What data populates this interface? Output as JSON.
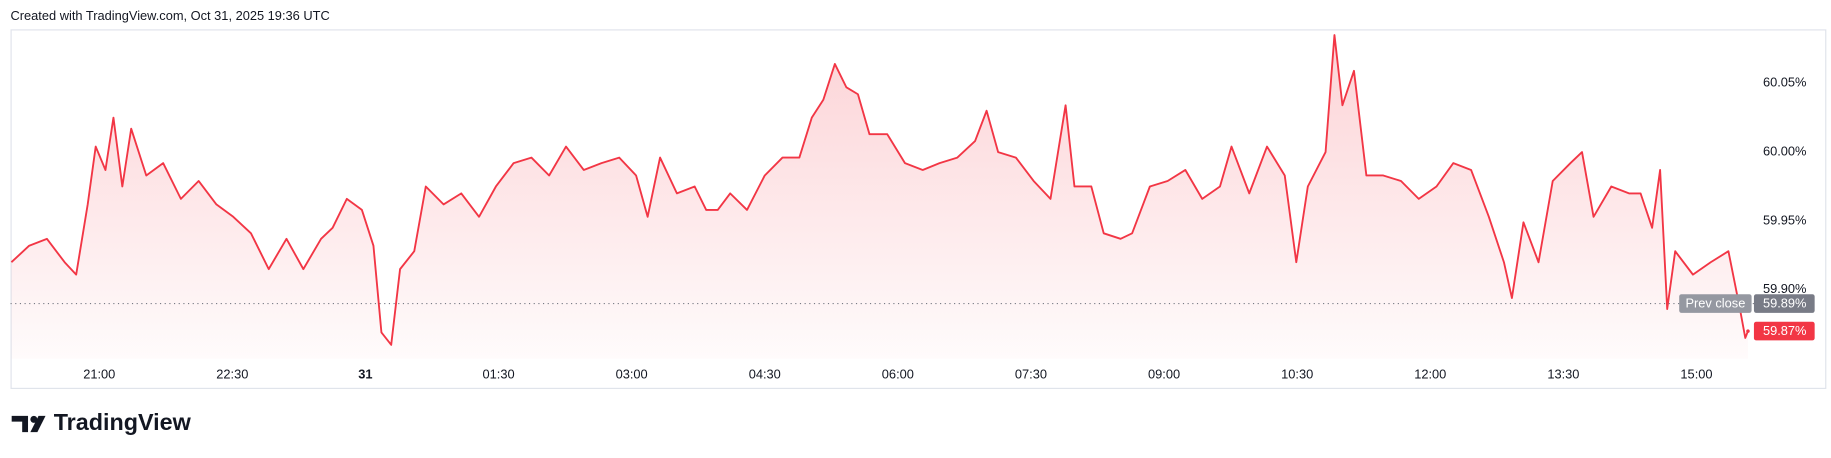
{
  "header": "Created with TradingView.com, Oct 31, 2025 19:36 UTC",
  "brand": "TradingView",
  "chart_data": {
    "type": "area",
    "color": "#f23645",
    "grid": false,
    "x": [
      20.01,
      20.21,
      20.41,
      20.61,
      20.74,
      20.87,
      20.96,
      21.07,
      21.16,
      21.26,
      21.36,
      21.53,
      21.72,
      21.92,
      22.12,
      22.32,
      22.51,
      22.71,
      22.91,
      23.11,
      23.3,
      23.5,
      23.63,
      23.79,
      23.96,
      24.09,
      24.18,
      24.29,
      24.39,
      24.55,
      24.68,
      24.88,
      25.08,
      25.28,
      25.47,
      25.67,
      25.87,
      26.07,
      26.26,
      26.46,
      26.66,
      26.86,
      27.05,
      27.18,
      27.32,
      27.51,
      27.71,
      27.84,
      27.97,
      28.11,
      28.3,
      28.5,
      28.7,
      28.89,
      29.03,
      29.16,
      29.29,
      29.42,
      29.55,
      29.68,
      29.88,
      30.08,
      30.28,
      30.47,
      30.67,
      30.87,
      31.0,
      31.13,
      31.33,
      31.53,
      31.72,
      31.89,
      31.99,
      32.18,
      32.32,
      32.51,
      32.64,
      32.84,
      33.04,
      33.24,
      33.43,
      33.63,
      33.76,
      33.96,
      34.16,
      34.36,
      34.49,
      34.62,
      34.82,
      34.92,
      35.01,
      35.14,
      35.28,
      35.47,
      35.67,
      35.87,
      36.07,
      36.26,
      36.46,
      36.66,
      36.83,
      36.92,
      37.05,
      37.22,
      37.38,
      37.58,
      37.71,
      37.84,
      38.04,
      38.24,
      38.37,
      38.5,
      38.59,
      38.67,
      38.76,
      38.96,
      39.16,
      39.36,
      39.49,
      39.55,
      39.58
    ],
    "values": [
      59.92,
      59.932,
      59.937,
      59.92,
      59.911,
      59.962,
      60.004,
      59.987,
      60.025,
      59.975,
      60.017,
      59.983,
      59.992,
      59.966,
      59.979,
      59.962,
      59.953,
      59.941,
      59.915,
      59.937,
      59.915,
      59.937,
      59.945,
      59.966,
      59.958,
      59.932,
      59.869,
      59.86,
      59.915,
      59.928,
      59.975,
      59.962,
      59.97,
      59.953,
      59.975,
      59.992,
      59.996,
      59.983,
      60.004,
      59.987,
      59.992,
      59.996,
      59.983,
      59.953,
      59.996,
      59.97,
      59.975,
      59.958,
      59.958,
      59.97,
      59.958,
      59.983,
      59.996,
      59.996,
      60.025,
      60.038,
      60.064,
      60.047,
      60.042,
      60.013,
      60.013,
      59.992,
      59.987,
      59.992,
      59.996,
      60.008,
      60.03,
      60.0,
      59.996,
      59.979,
      59.966,
      60.034,
      59.975,
      59.975,
      59.941,
      59.937,
      59.941,
      59.975,
      59.979,
      59.987,
      59.966,
      59.975,
      60.004,
      59.97,
      60.004,
      59.983,
      59.92,
      59.975,
      60.0,
      60.085,
      60.034,
      60.059,
      59.983,
      59.983,
      59.979,
      59.966,
      59.975,
      59.992,
      59.987,
      59.953,
      59.92,
      59.894,
      59.949,
      59.92,
      59.979,
      59.992,
      60.0,
      59.953,
      59.975,
      59.97,
      59.97,
      59.945,
      59.987,
      59.886,
      59.928,
      59.911,
      59.92,
      59.928,
      59.886,
      59.865,
      59.87
    ],
    "last_value_label": "59.87%",
    "prev_close": {
      "label": "Prev close",
      "value": 59.89,
      "value_label": "59.89%"
    },
    "xlim": [
      20.0,
      39.7
    ],
    "ylim": [
      59.85,
      60.09
    ],
    "xticks": [
      {
        "value": 21,
        "label": "21:00"
      },
      {
        "value": 22.5,
        "label": "22:30"
      },
      {
        "value": 24,
        "label": "31"
      },
      {
        "value": 25.5,
        "label": "01:30"
      },
      {
        "value": 27,
        "label": "03:00"
      },
      {
        "value": 28.5,
        "label": "04:30"
      },
      {
        "value": 30,
        "label": "06:00"
      },
      {
        "value": 31.5,
        "label": "07:30"
      },
      {
        "value": 33,
        "label": "09:00"
      },
      {
        "value": 34.5,
        "label": "10:30"
      },
      {
        "value": 36,
        "label": "12:00"
      },
      {
        "value": 37.5,
        "label": "13:30"
      },
      {
        "value": 39,
        "label": "15:00"
      }
    ],
    "yticks": [
      {
        "value": 59.9,
        "label": "59.90%"
      },
      {
        "value": 59.95,
        "label": "59.95%"
      },
      {
        "value": 60.0,
        "label": "60.00%"
      },
      {
        "value": 60.05,
        "label": "60.05%"
      }
    ]
  }
}
